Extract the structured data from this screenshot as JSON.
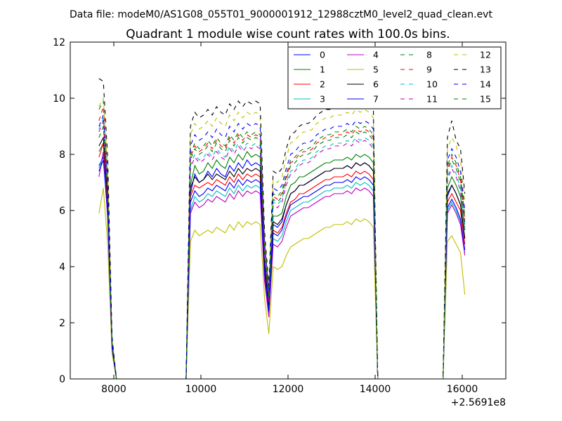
{
  "figure": {
    "suptitle": "Data file: modeM0/AS1G08_055T01_9000001912_12988cztM0_level2_quad_clean.evt"
  },
  "chart_data": {
    "type": "line",
    "title": "Quadrant 1 module wise count rates with 100.0s bins.",
    "xlabel": "",
    "ylabel": "",
    "x_offset_label": "+2.5691e8",
    "xlim": [
      7000,
      17000
    ],
    "ylim": [
      0,
      12
    ],
    "xticks": [
      8000,
      10000,
      12000,
      14000,
      16000
    ],
    "yticks": [
      0,
      2,
      4,
      6,
      8,
      10,
      12
    ],
    "xtick_labels": [
      "8000",
      "10000",
      "12000",
      "14000",
      "16000"
    ],
    "ytick_labels": [
      "0",
      "2",
      "4",
      "6",
      "8",
      "10",
      "12"
    ],
    "grid": false,
    "legend_position": "top-right",
    "legend_columns": 4,
    "x": [
      7660,
      7760,
      7860,
      7960,
      8060,
      9660,
      9760,
      9860,
      9960,
      10060,
      10160,
      10260,
      10360,
      10460,
      10560,
      10660,
      10760,
      10860,
      10960,
      11060,
      11160,
      11260,
      11360,
      11460,
      11560,
      11660,
      11760,
      11860,
      11960,
      12060,
      12160,
      12260,
      12360,
      12460,
      12560,
      12660,
      12760,
      12860,
      12960,
      13060,
      13160,
      13260,
      13360,
      13460,
      13560,
      13660,
      13760,
      13860,
      13960,
      14060,
      14160,
      15560,
      15660,
      15760,
      15860,
      15960,
      16060
    ],
    "series": [
      {
        "name": "0",
        "color": "#0000ff",
        "dash": "solid",
        "values": [
          7.6,
          7.9,
          6.0,
          1.2,
          0,
          0,
          6.6,
          7.3,
          7.0,
          7.1,
          7.4,
          7.2,
          7.5,
          7.3,
          7.2,
          7.6,
          7.4,
          7.7,
          7.5,
          7.8,
          7.6,
          7.7,
          7.6,
          4.0,
          2.5,
          5.5,
          5.4,
          5.6,
          6.2,
          6.6,
          6.7,
          6.9,
          6.9,
          7.0,
          7.1,
          7.2,
          7.3,
          7.4,
          7.4,
          7.5,
          7.5,
          7.5,
          7.6,
          7.5,
          7.7,
          7.6,
          7.7,
          7.6,
          7.4,
          0,
          0,
          0,
          6.5,
          6.9,
          6.6,
          6.2,
          5.0
        ]
      },
      {
        "name": "1",
        "color": "#008000",
        "dash": "solid",
        "values": [
          8.1,
          8.4,
          6.3,
          1.2,
          0,
          0,
          6.9,
          7.6,
          7.3,
          7.4,
          7.7,
          7.5,
          7.8,
          7.6,
          7.5,
          7.9,
          7.7,
          8.0,
          7.8,
          8.1,
          7.9,
          8.0,
          7.9,
          4.3,
          2.8,
          5.8,
          5.8,
          5.9,
          6.5,
          6.9,
          7.0,
          7.2,
          7.2,
          7.3,
          7.4,
          7.5,
          7.6,
          7.7,
          7.7,
          7.8,
          7.8,
          7.8,
          7.9,
          7.8,
          8.0,
          7.9,
          8.0,
          7.9,
          7.7,
          0,
          0,
          0,
          6.8,
          7.2,
          6.9,
          6.5,
          5.3
        ]
      },
      {
        "name": "2",
        "color": "#ff0000",
        "dash": "solid",
        "values": [
          7.9,
          8.4,
          6.1,
          1.2,
          0,
          0,
          6.5,
          6.9,
          6.8,
          6.9,
          7.0,
          6.9,
          7.1,
          7.0,
          6.9,
          7.2,
          7.0,
          7.3,
          7.1,
          7.3,
          7.2,
          7.3,
          7.2,
          3.9,
          2.5,
          5.3,
          5.2,
          5.4,
          5.9,
          6.3,
          6.4,
          6.6,
          6.6,
          6.7,
          6.8,
          6.9,
          7.0,
          7.1,
          7.1,
          7.2,
          7.2,
          7.2,
          7.3,
          7.2,
          7.4,
          7.3,
          7.4,
          7.3,
          7.1,
          0,
          0,
          0,
          6.3,
          6.6,
          6.3,
          6.0,
          4.8
        ]
      },
      {
        "name": "3",
        "color": "#00bfbf",
        "dash": "solid",
        "values": [
          7.5,
          8.0,
          5.8,
          1.1,
          0,
          0,
          6.0,
          6.5,
          6.3,
          6.4,
          6.6,
          6.5,
          6.7,
          6.6,
          6.5,
          6.8,
          6.6,
          6.9,
          6.7,
          6.9,
          6.8,
          6.9,
          6.8,
          3.6,
          2.3,
          5.0,
          4.9,
          5.1,
          5.6,
          6.0,
          6.1,
          6.2,
          6.3,
          6.3,
          6.4,
          6.5,
          6.6,
          6.7,
          6.7,
          6.8,
          6.8,
          6.8,
          6.9,
          6.8,
          7.0,
          6.9,
          7.0,
          6.9,
          6.7,
          0,
          0,
          0,
          6.0,
          6.3,
          6.0,
          5.6,
          4.5
        ]
      },
      {
        "name": "4",
        "color": "#bf00bf",
        "dash": "solid",
        "values": [
          7.2,
          8.1,
          5.7,
          1.1,
          0,
          0,
          5.9,
          6.3,
          6.1,
          6.2,
          6.4,
          6.3,
          6.5,
          6.4,
          6.3,
          6.6,
          6.4,
          6.7,
          6.5,
          6.7,
          6.6,
          6.7,
          6.6,
          3.5,
          2.2,
          4.8,
          4.7,
          4.9,
          5.4,
          5.8,
          5.9,
          6.0,
          6.1,
          6.1,
          6.2,
          6.3,
          6.4,
          6.5,
          6.5,
          6.6,
          6.6,
          6.6,
          6.7,
          6.6,
          6.8,
          6.7,
          6.8,
          6.7,
          6.5,
          0,
          0,
          0,
          5.9,
          6.2,
          5.9,
          5.5,
          4.4
        ]
      },
      {
        "name": "5",
        "color": "#bfbf00",
        "dash": "solid",
        "values": [
          5.9,
          6.8,
          4.8,
          0.9,
          0,
          0,
          4.9,
          5.3,
          5.1,
          5.2,
          5.3,
          5.2,
          5.4,
          5.3,
          5.2,
          5.5,
          5.3,
          5.6,
          5.4,
          5.6,
          5.5,
          5.6,
          5.5,
          2.9,
          1.6,
          4.0,
          3.9,
          4.0,
          4.4,
          4.7,
          4.8,
          4.9,
          5.0,
          5.0,
          5.1,
          5.2,
          5.3,
          5.4,
          5.4,
          5.5,
          5.5,
          5.5,
          5.6,
          5.5,
          5.7,
          5.6,
          5.7,
          5.6,
          5.4,
          0,
          0,
          0,
          4.9,
          5.1,
          4.8,
          4.5,
          3.0
        ]
      },
      {
        "name": "6",
        "color": "#000000",
        "dash": "solid",
        "values": [
          8.3,
          8.6,
          6.4,
          1.2,
          0,
          0,
          6.8,
          7.2,
          7.0,
          7.1,
          7.3,
          7.1,
          7.3,
          7.2,
          7.1,
          7.4,
          7.2,
          7.5,
          7.3,
          7.5,
          7.4,
          7.5,
          7.4,
          4.1,
          2.6,
          5.6,
          5.5,
          5.7,
          6.2,
          6.6,
          6.7,
          6.9,
          6.9,
          7.0,
          7.1,
          7.2,
          7.3,
          7.4,
          7.4,
          7.5,
          7.5,
          7.5,
          7.6,
          7.5,
          7.7,
          7.6,
          7.7,
          7.6,
          7.4,
          0,
          0,
          0,
          6.6,
          6.9,
          6.6,
          6.2,
          5.0
        ]
      },
      {
        "name": "7",
        "color": "#0000ff",
        "dash": "solid",
        "values": [
          7.4,
          7.8,
          5.9,
          1.1,
          0,
          0,
          6.3,
          6.7,
          6.5,
          6.6,
          6.8,
          6.7,
          6.9,
          6.8,
          6.7,
          7.0,
          6.8,
          7.1,
          6.9,
          7.1,
          7.0,
          7.1,
          7.0,
          3.8,
          2.4,
          5.2,
          5.1,
          5.3,
          5.8,
          6.2,
          6.3,
          6.4,
          6.5,
          6.5,
          6.6,
          6.7,
          6.8,
          6.9,
          6.9,
          7.0,
          7.0,
          7.0,
          7.1,
          7.0,
          7.2,
          7.1,
          7.2,
          7.1,
          6.9,
          0,
          0,
          0,
          6.1,
          6.4,
          6.1,
          5.7,
          4.6
        ]
      },
      {
        "name": "8",
        "color": "#008000",
        "dash": "dashed",
        "values": [
          9.6,
          9.9,
          7.3,
          1.4,
          0,
          0,
          8.0,
          8.4,
          8.2,
          8.3,
          8.5,
          8.3,
          8.6,
          8.4,
          8.3,
          8.7,
          8.5,
          8.8,
          8.6,
          8.8,
          8.7,
          8.8,
          8.7,
          4.8,
          3.0,
          6.6,
          6.5,
          6.7,
          7.3,
          7.8,
          7.9,
          8.1,
          8.2,
          8.2,
          8.3,
          8.5,
          8.6,
          8.7,
          8.7,
          8.8,
          8.8,
          8.8,
          8.9,
          8.8,
          9.0,
          8.9,
          9.0,
          8.9,
          8.7,
          0,
          0,
          0,
          7.6,
          8.0,
          7.7,
          7.2,
          5.8
        ]
      },
      {
        "name": "9",
        "color": "#ff0000",
        "dash": "dashed",
        "values": [
          9.2,
          9.7,
          7.0,
          1.3,
          0,
          0,
          7.9,
          8.3,
          8.1,
          8.2,
          8.4,
          8.2,
          8.5,
          8.3,
          8.2,
          8.6,
          8.4,
          8.7,
          8.5,
          8.7,
          8.6,
          8.7,
          8.6,
          4.7,
          2.9,
          6.5,
          6.4,
          6.6,
          7.2,
          7.7,
          7.8,
          8.0,
          8.1,
          8.1,
          8.2,
          8.4,
          8.5,
          8.6,
          8.6,
          8.7,
          8.7,
          8.7,
          8.8,
          8.7,
          8.9,
          8.8,
          8.9,
          8.8,
          8.6,
          0,
          0,
          0,
          7.5,
          7.9,
          7.6,
          7.1,
          5.7
        ]
      },
      {
        "name": "10",
        "color": "#00bfbf",
        "dash": "dashed",
        "values": [
          8.9,
          9.3,
          6.8,
          1.3,
          0,
          0,
          7.6,
          8.0,
          7.8,
          7.9,
          8.1,
          7.9,
          8.2,
          8.0,
          7.9,
          8.3,
          8.1,
          8.4,
          8.2,
          8.4,
          8.3,
          8.4,
          8.3,
          4.5,
          2.8,
          6.3,
          6.2,
          6.4,
          7.0,
          7.4,
          7.5,
          7.7,
          7.8,
          7.8,
          7.9,
          8.1,
          8.2,
          8.3,
          8.3,
          8.4,
          8.4,
          8.4,
          8.5,
          8.4,
          8.6,
          8.5,
          8.6,
          8.5,
          8.3,
          0,
          0,
          0,
          7.2,
          7.6,
          7.3,
          6.8,
          5.5
        ]
      },
      {
        "name": "11",
        "color": "#bf00bf",
        "dash": "dashed",
        "values": [
          8.8,
          9.2,
          6.7,
          1.3,
          0,
          0,
          7.5,
          7.9,
          7.7,
          7.8,
          8.0,
          7.8,
          8.1,
          7.9,
          7.8,
          8.2,
          8.0,
          8.3,
          8.1,
          8.3,
          8.2,
          8.3,
          8.2,
          4.4,
          2.7,
          6.2,
          6.1,
          6.3,
          6.9,
          7.3,
          7.4,
          7.6,
          7.7,
          7.7,
          7.8,
          8.0,
          8.1,
          8.2,
          8.2,
          8.3,
          8.3,
          8.3,
          8.4,
          8.3,
          8.5,
          8.4,
          8.5,
          8.4,
          8.2,
          0,
          0,
          0,
          7.1,
          7.5,
          7.2,
          6.7,
          5.4
        ]
      },
      {
        "name": "12",
        "color": "#bfbf00",
        "dash": "dashed",
        "values": [
          9.7,
          10.0,
          7.5,
          1.4,
          0,
          0,
          8.7,
          9.1,
          8.9,
          9.0,
          9.2,
          9.0,
          9.3,
          9.1,
          9.0,
          9.4,
          9.2,
          9.5,
          9.3,
          9.5,
          9.4,
          9.5,
          9.4,
          5.1,
          3.2,
          7.1,
          7.0,
          7.2,
          7.9,
          8.4,
          8.5,
          8.7,
          8.8,
          8.8,
          8.9,
          9.1,
          9.2,
          9.3,
          9.3,
          9.4,
          9.4,
          9.4,
          9.5,
          9.4,
          9.6,
          9.5,
          9.6,
          9.5,
          9.3,
          0,
          0,
          0,
          8.2,
          8.6,
          8.3,
          7.8,
          6.3
        ]
      },
      {
        "name": "13",
        "color": "#000000",
        "dash": "dashed",
        "values": [
          10.7,
          10.6,
          7.9,
          1.5,
          0,
          0,
          9.0,
          9.5,
          9.3,
          9.4,
          9.6,
          9.4,
          9.7,
          9.5,
          9.4,
          9.8,
          9.6,
          9.9,
          9.7,
          9.9,
          9.8,
          9.9,
          9.8,
          5.3,
          3.3,
          7.4,
          7.3,
          7.5,
          8.2,
          8.7,
          8.8,
          9.0,
          9.1,
          9.1,
          9.2,
          9.4,
          9.5,
          9.6,
          9.6,
          9.7,
          9.7,
          9.7,
          9.8,
          9.7,
          9.9,
          9.8,
          9.9,
          9.8,
          9.6,
          0,
          0,
          0,
          8.6,
          9.2,
          8.5,
          8.2,
          6.6
        ]
      },
      {
        "name": "14",
        "color": "#0000ff",
        "dash": "dashed",
        "values": [
          9.0,
          9.4,
          6.9,
          1.3,
          0,
          0,
          8.3,
          8.7,
          8.5,
          8.6,
          8.8,
          8.6,
          8.9,
          8.7,
          8.6,
          9.0,
          8.8,
          9.1,
          8.9,
          9.1,
          9.0,
          9.1,
          9.0,
          4.9,
          3.1,
          6.8,
          6.7,
          6.9,
          7.5,
          8.0,
          8.1,
          8.3,
          8.4,
          8.4,
          8.5,
          8.7,
          8.8,
          8.9,
          8.9,
          9.0,
          9.0,
          9.0,
          9.1,
          9.0,
          9.2,
          9.1,
          9.2,
          9.1,
          8.9,
          0,
          0,
          0,
          7.8,
          8.2,
          7.9,
          7.4,
          6.0
        ]
      },
      {
        "name": "15",
        "color": "#008000",
        "dash": "dashed",
        "values": [
          8.6,
          9.0,
          6.6,
          1.3,
          0,
          0,
          7.8,
          8.2,
          8.0,
          8.1,
          8.3,
          8.1,
          8.4,
          8.2,
          8.1,
          8.5,
          8.3,
          8.6,
          8.4,
          8.6,
          8.5,
          8.6,
          8.5,
          4.6,
          2.9,
          6.4,
          6.3,
          6.5,
          7.1,
          7.6,
          7.7,
          7.9,
          8.0,
          8.0,
          8.1,
          8.3,
          8.4,
          8.5,
          8.5,
          8.6,
          8.6,
          8.6,
          8.7,
          8.6,
          8.8,
          8.7,
          8.8,
          8.7,
          8.5,
          0,
          0,
          0,
          7.4,
          7.8,
          7.5,
          7.0,
          5.6
        ]
      }
    ]
  }
}
